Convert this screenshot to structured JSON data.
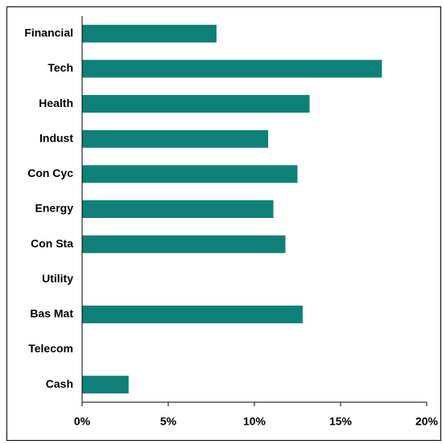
{
  "chart_data": {
    "type": "bar",
    "orientation": "horizontal",
    "categories": [
      "Financial",
      "Tech",
      "Health",
      "Indust",
      "Con Cyc",
      "Energy",
      "Con Sta",
      "Utility",
      "Bas Mat",
      "Telecom",
      "Cash"
    ],
    "values": [
      7.8,
      17.4,
      13.2,
      10.8,
      12.5,
      11.1,
      11.8,
      0,
      12.8,
      0,
      2.7
    ],
    "color": "#0f8078",
    "xlim": [
      0,
      20
    ],
    "xticks": [
      {
        "value": 0,
        "label": "0%"
      },
      {
        "value": 5,
        "label": "5%"
      },
      {
        "value": 10,
        "label": "10%"
      },
      {
        "value": 15,
        "label": "15%"
      },
      {
        "value": 20,
        "label": "20%"
      }
    ],
    "grid": false
  }
}
